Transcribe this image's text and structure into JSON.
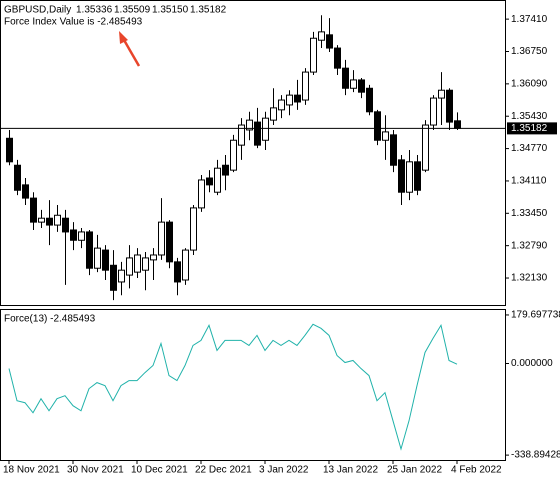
{
  "chart_data": [
    {
      "type": "candlestick",
      "title": "GBPUSD,Daily",
      "header_values": [
        "1.35336",
        "1.35509",
        "1.35150",
        "1.35182"
      ],
      "annotation": "Force Index Value is -2.485493",
      "categories": [
        "18 Nov 2021",
        null,
        null,
        null,
        null,
        null,
        null,
        null,
        "30 Nov 2021",
        null,
        null,
        null,
        null,
        null,
        null,
        null,
        "10 Dec 2021",
        null,
        null,
        null,
        null,
        null,
        null,
        null,
        "22 Dec 2021",
        null,
        null,
        null,
        null,
        null,
        null,
        null,
        "3 Jan 2022",
        null,
        null,
        null,
        null,
        null,
        null,
        null,
        "13 Jan 2022",
        null,
        null,
        null,
        null,
        null,
        null,
        null,
        "25 Jan 2022",
        null,
        null,
        null,
        null,
        null,
        null,
        null,
        "4 Feb 2022"
      ],
      "open": [
        1.3498,
        1.3443,
        1.3403,
        1.3376,
        1.3327,
        1.3335,
        1.3321,
        1.3335,
        1.3311,
        1.329,
        1.3307,
        1.3233,
        1.327,
        1.3239,
        1.3205,
        1.3219,
        1.3225,
        1.3229,
        1.325,
        1.326,
        1.3327,
        1.3246,
        1.3209,
        1.327,
        1.3356,
        1.3417,
        1.3388,
        1.3443,
        1.3433,
        1.3484,
        1.3515,
        1.3531,
        1.3494,
        1.3535,
        1.3556,
        1.3566,
        1.3586,
        1.3576,
        1.3633,
        1.3698,
        1.3709,
        1.3682,
        1.3641,
        1.36,
        1.3617,
        1.36,
        1.3552,
        1.3494,
        1.3505,
        1.3454,
        1.3388,
        1.345,
        1.3433,
        1.3525,
        1.358,
        1.3596,
        1.35336
      ],
      "high": [
        1.3515,
        1.3454,
        1.3417,
        1.3388,
        1.3352,
        1.3372,
        1.3362,
        1.3352,
        1.3327,
        1.3315,
        1.3311,
        1.3301,
        1.328,
        1.327,
        1.3246,
        1.328,
        1.3274,
        1.3266,
        1.3274,
        1.3376,
        1.3331,
        1.3254,
        1.3274,
        1.3362,
        1.3423,
        1.3433,
        1.3454,
        1.3464,
        1.3505,
        1.3539,
        1.3552,
        1.356,
        1.3552,
        1.36,
        1.3586,
        1.3596,
        1.3617,
        1.3641,
        1.3715,
        1.3749,
        1.3743,
        1.3688,
        1.3658,
        1.3637,
        1.3621,
        1.3607,
        1.3556,
        1.3545,
        1.3515,
        1.3464,
        1.3474,
        1.3464,
        1.3535,
        1.3586,
        1.3633,
        1.36,
        1.35509
      ],
      "low": [
        1.3443,
        1.3382,
        1.3362,
        1.3311,
        1.3315,
        1.328,
        1.3307,
        1.3199,
        1.327,
        1.3274,
        1.3219,
        1.3225,
        1.3209,
        1.3168,
        1.3178,
        1.3192,
        1.3213,
        1.3188,
        1.3209,
        1.325,
        1.3233,
        1.3178,
        1.3199,
        1.326,
        1.3348,
        1.3388,
        1.3382,
        1.3392,
        1.3429,
        1.3454,
        1.3494,
        1.3478,
        1.3474,
        1.3525,
        1.3539,
        1.3545,
        1.3556,
        1.3566,
        1.3627,
        1.3682,
        1.3674,
        1.3627,
        1.3586,
        1.3592,
        1.358,
        1.3545,
        1.3484,
        1.3454,
        1.3429,
        1.3362,
        1.3372,
        1.3382,
        1.3429,
        1.3515,
        1.3525,
        1.3515,
        1.3515
      ],
      "close": [
        1.345,
        1.3392,
        1.3376,
        1.3327,
        1.3335,
        1.3321,
        1.3341,
        1.3307,
        1.329,
        1.3307,
        1.3233,
        1.3274,
        1.3229,
        1.3188,
        1.3229,
        1.3254,
        1.326,
        1.3254,
        1.326,
        1.3327,
        1.3246,
        1.3205,
        1.327,
        1.3356,
        1.3413,
        1.3403,
        1.3437,
        1.3423,
        1.3494,
        1.3525,
        1.3535,
        1.3484,
        1.3539,
        1.356,
        1.3576,
        1.3586,
        1.3572,
        1.3633,
        1.3702,
        1.3715,
        1.3682,
        1.3641,
        1.36,
        1.3617,
        1.3592,
        1.3552,
        1.3494,
        1.3511,
        1.3443,
        1.3388,
        1.345,
        1.3392,
        1.3525,
        1.358,
        1.3596,
        1.3531,
        1.35182
      ],
      "up_color": "#ffffff",
      "down_color": "#000000",
      "wick_color": "#000000",
      "ylim": [
        1.3158,
        1.378
      ],
      "yticks": [
        {
          "value": 1.3741,
          "label": "1.37410"
        },
        {
          "value": 1.3675,
          "label": "1.36750"
        },
        {
          "value": 1.3609,
          "label": "1.36090"
        },
        {
          "value": 1.3543,
          "label": "1.35430"
        },
        {
          "value": 1.3477,
          "label": "1.34770"
        },
        {
          "value": 1.3411,
          "label": "1.34110"
        },
        {
          "value": 1.3345,
          "label": "1.33450"
        },
        {
          "value": 1.3279,
          "label": "1.32790"
        },
        {
          "value": 1.3213,
          "label": "1.32130"
        }
      ],
      "last_price": 1.35182,
      "grid": false
    },
    {
      "type": "line",
      "title": "Force(13) -2.485493",
      "values": [
        -18.6,
        -137.6,
        -145.1,
        -182.3,
        -130.2,
        -174.8,
        -130.2,
        -119.0,
        -156.2,
        -174.8,
        -93.0,
        -70.7,
        -81.8,
        -137.6,
        -81.8,
        -63.2,
        -63.2,
        -33.5,
        -7.4,
        74.4,
        -44.6,
        -63.2,
        -7.4,
        67.0,
        85.6,
        141.4,
        48.4,
        85.6,
        85.6,
        85.6,
        67.0,
        104.2,
        48.4,
        85.6,
        67.0,
        85.6,
        67.0,
        104.2,
        145.1,
        130.2,
        104.2,
        29.8,
        3.7,
        11.2,
        -18.6,
        -44.6,
        -137.6,
        -107.9,
        -212.0,
        -316.2,
        -212.0,
        -81.8,
        40.9,
        93.0,
        141.4,
        11.2,
        -2.485493
      ],
      "color": "#20b2aa",
      "ylim": [
        -357,
        198
      ],
      "yticks": [
        179.697738,
        {
          "value": 0,
          "label": "0.000000"
        },
        -338.894283
      ],
      "grid": false
    }
  ]
}
